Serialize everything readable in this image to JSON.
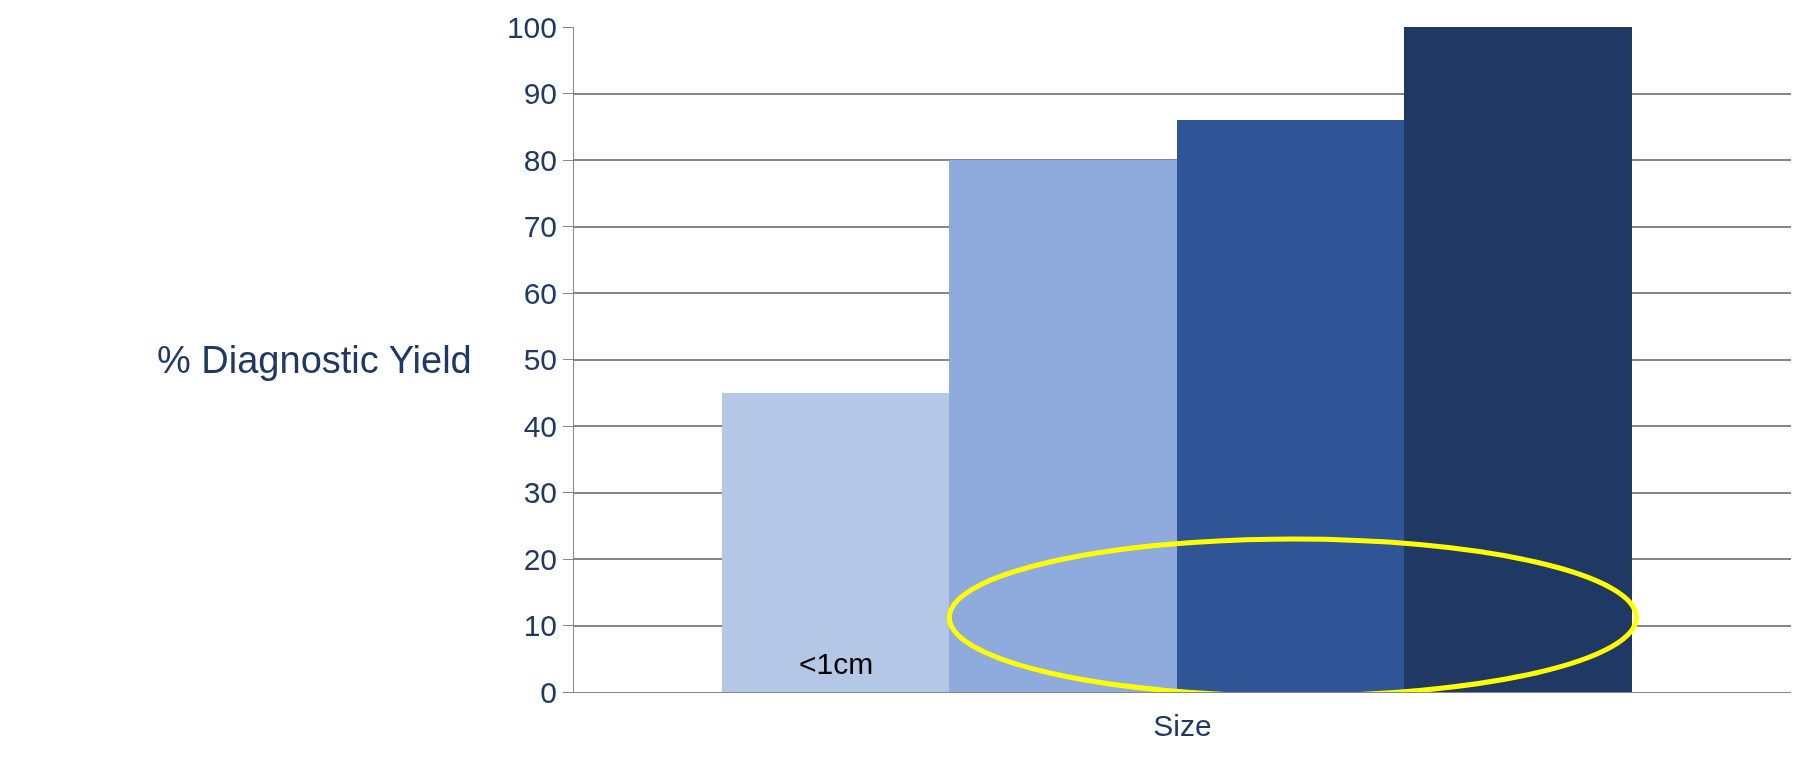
{
  "chart_data": {
    "type": "bar",
    "xlabel": "Size",
    "ylabel": "% Diagnostic Yield",
    "categories": [
      null,
      null,
      null,
      null
    ],
    "values": [
      45,
      80,
      86,
      100
    ],
    "colors": [
      "#b4c7e7",
      "#8faadc",
      "#2f5597",
      "#203864"
    ],
    "ylim": [
      0,
      100
    ],
    "yticks": [
      0,
      10,
      20,
      30,
      40,
      50,
      60,
      70,
      80,
      90,
      100
    ],
    "grid": "y",
    "annotations": [
      "<1cm"
    ]
  }
}
